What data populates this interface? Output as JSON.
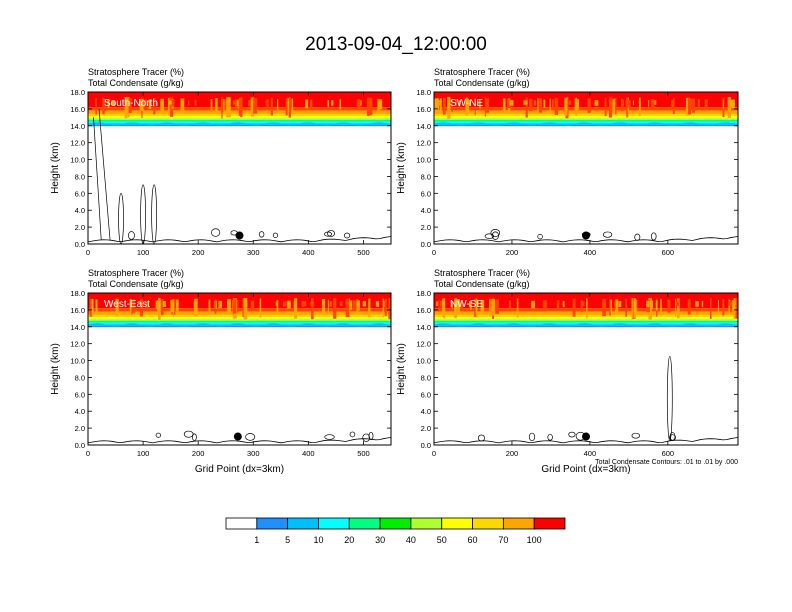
{
  "title": "2013-09-04_12:00:00",
  "footnote": "Total Condensate Contours: .01 to .01 by .000",
  "colors": {
    "levels": [
      "#ffffff",
      "#1e90ff",
      "#00bfff",
      "#00ffff",
      "#00ff7f",
      "#00ee00",
      "#adff2f",
      "#ffff00",
      "#ffd700",
      "#ffa500",
      "#ff4500",
      "#ff0000"
    ]
  },
  "colorbar": {
    "labels": [
      "1",
      "5",
      "10",
      "20",
      "30",
      "40",
      "50",
      "60",
      "70",
      "100"
    ]
  },
  "chart_data": [
    {
      "type": "heatmap",
      "name": "South-North",
      "title_line1": "Stratosphere Tracer   (%)",
      "title_line2": "Total Condensate   (g/kg)",
      "xlabel": "",
      "ylabel": "Height (km)",
      "xlim": [
        0,
        550
      ],
      "ylim": [
        0,
        18
      ],
      "xticks": [
        "0",
        "100",
        "200",
        "300",
        "400",
        "500"
      ],
      "xtick_values": [
        0,
        100,
        200,
        300,
        400,
        500
      ],
      "yticks": [
        "0.0",
        "2.0",
        "4.0",
        "6.0",
        "8.0",
        "10.0",
        "12.0",
        "14.0",
        "16.0",
        "18.0"
      ],
      "tropopause_km": 14.3,
      "marker_x": 275,
      "marker_y_km": 1.0
    },
    {
      "type": "heatmap",
      "name": "SW-NE",
      "title_line1": "Stratosphere Tracer   (%)",
      "title_line2": "Total Condensate   (g/kg)",
      "xlabel": "",
      "ylabel": "Height (km)",
      "xlim": [
        0,
        780
      ],
      "ylim": [
        0,
        18
      ],
      "xticks": [
        "0",
        "200",
        "400",
        "600"
      ],
      "xtick_values": [
        0,
        200,
        400,
        600
      ],
      "yticks": [
        "0.0",
        "2.0",
        "4.0",
        "6.0",
        "8.0",
        "10.0",
        "12.0",
        "14.0",
        "16.0",
        "18.0"
      ],
      "tropopause_km": 14.3,
      "marker_x": 390,
      "marker_y_km": 1.0
    },
    {
      "type": "heatmap",
      "name": "West-East",
      "title_line1": "Stratosphere Tracer   (%)",
      "title_line2": "Total Condensate   (g/kg)",
      "xlabel": "Grid Point (dx=3km)",
      "ylabel": "Height (km)",
      "xlim": [
        0,
        550
      ],
      "ylim": [
        0,
        18
      ],
      "xticks": [
        "0",
        "100",
        "200",
        "300",
        "400",
        "500"
      ],
      "xtick_values": [
        0,
        100,
        200,
        300,
        400,
        500
      ],
      "yticks": [
        "0.0",
        "2.0",
        "4.0",
        "6.0",
        "8.0",
        "10.0",
        "12.0",
        "14.0",
        "16.0",
        "18.0"
      ],
      "tropopause_km": 14.3,
      "marker_x": 272,
      "marker_y_km": 1.0
    },
    {
      "type": "heatmap",
      "name": "NW-SE",
      "title_line1": "Stratosphere Tracer   (%)",
      "title_line2": "Total Condensate   (g/kg)",
      "xlabel": "Grid Point (dx=3km)",
      "ylabel": "Height (km)",
      "xlim": [
        0,
        780
      ],
      "ylim": [
        0,
        18
      ],
      "xticks": [
        "0",
        "200",
        "400",
        "600"
      ],
      "xtick_values": [
        0,
        200,
        400,
        600
      ],
      "yticks": [
        "0.0",
        "2.0",
        "4.0",
        "6.0",
        "8.0",
        "10.0",
        "12.0",
        "14.0",
        "16.0",
        "18.0"
      ],
      "tropopause_km": 14.3,
      "marker_x": 390,
      "marker_y_km": 1.0
    }
  ]
}
